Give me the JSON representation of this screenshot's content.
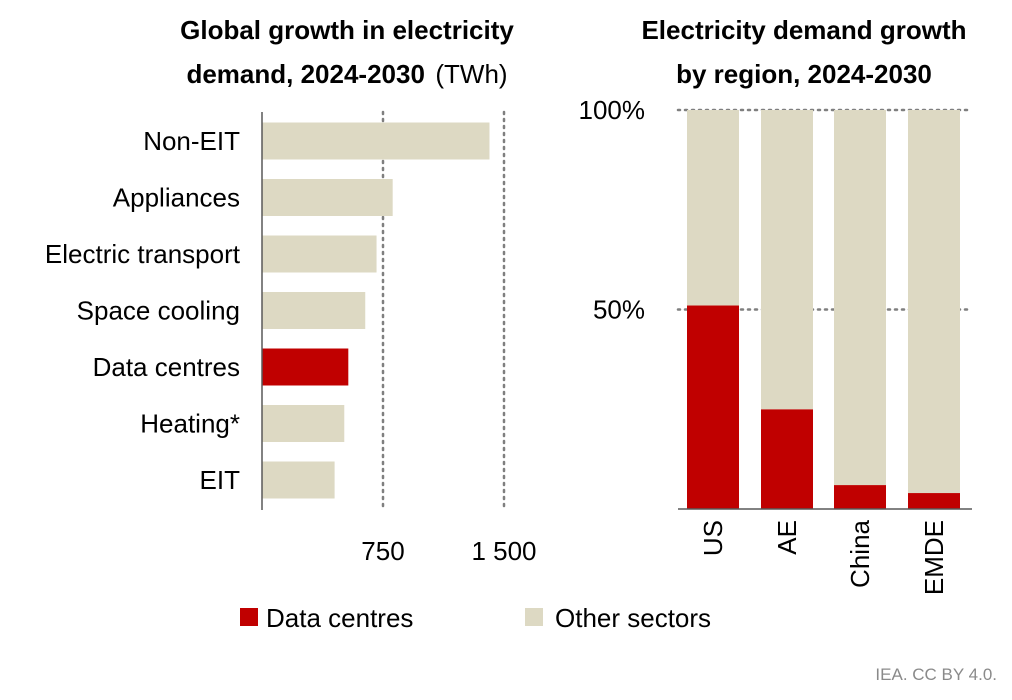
{
  "colors": {
    "data_centres": "#C00000",
    "other_sectors": "#DDD9C3"
  },
  "chart_data": [
    {
      "type": "bar",
      "orientation": "horizontal",
      "title_bold": "Global growth in electricity demand, 2024-2030",
      "title_line1": "Global growth in electricity",
      "title_line2_bold": "demand, 2024-2030",
      "title_unit": "(TWh)",
      "categories": [
        "Non-EIT",
        "Appliances",
        "Electric transport",
        "Space cooling",
        "Data centres",
        "Heating*",
        "EIT"
      ],
      "values": [
        1410,
        810,
        710,
        640,
        535,
        510,
        450
      ],
      "highlight": "Data centres",
      "xlim": [
        0,
        1700
      ],
      "xticks": [
        750,
        1500
      ],
      "xtick_labels": [
        "750",
        "1 500"
      ],
      "grid": "vertical dotted"
    },
    {
      "type": "bar",
      "stacked": true,
      "title_line1": "Electricity demand growth",
      "title_line2": "by region, 2024-2030",
      "categories": [
        "US",
        "AE",
        "China",
        "EMDE"
      ],
      "series": [
        {
          "name": "Data centres",
          "values": [
            51,
            25,
            6,
            4
          ]
        },
        {
          "name": "Other sectors",
          "values": [
            49,
            75,
            94,
            96
          ]
        }
      ],
      "ylim": [
        0,
        100
      ],
      "yticks": [
        50,
        100
      ],
      "ytick_labels": [
        "50%",
        "100%"
      ],
      "grid": "horizontal dotted"
    }
  ],
  "legend": {
    "items": [
      "Data centres",
      "Other sectors"
    ],
    "placement": "bottom"
  },
  "footer": "IEA. CC BY 4.0."
}
